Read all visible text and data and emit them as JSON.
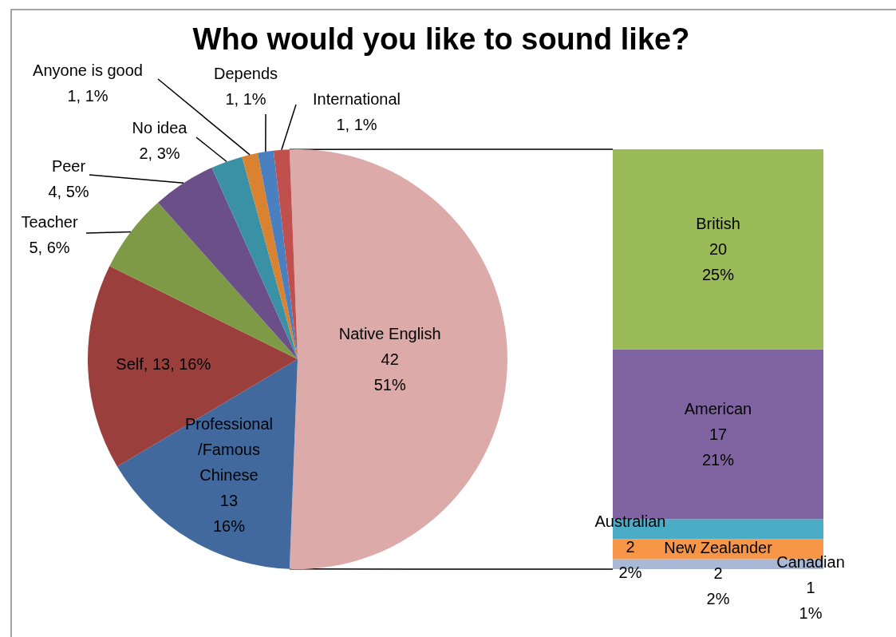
{
  "chart_data": [
    {
      "type": "pie",
      "title": "Who would you like to sound like?",
      "categories": [
        "Native English",
        "Professional\n/Famous\nChinese",
        "Self",
        "Teacher",
        "Peer",
        "No idea",
        "Anyone is good",
        "Depends",
        "International"
      ],
      "values": [
        42,
        13,
        13,
        5,
        4,
        2,
        1,
        1,
        1
      ],
      "value_labels": [
        "42\n51%",
        "13\n16%",
        "13, 16%",
        "5, 6%",
        "4, 5%",
        "2, 3%",
        "1, 1%",
        "1, 1%",
        "1, 1%"
      ],
      "colors": [
        "#dbaaa9",
        "#41699e",
        "#9b3f3d",
        "#7f9a46",
        "#6a4f88",
        "#3a91a6",
        "#d9822f",
        "#4a80c0",
        "#c0504d"
      ]
    },
    {
      "type": "bar",
      "stacked": true,
      "categories": [
        null
      ],
      "series": [
        {
          "name": "Canadian",
          "color": "#a9b8d6",
          "values": [
            1
          ],
          "value_labels": [
            "1\n1%"
          ]
        },
        {
          "name": "New Zealander",
          "color": "#f79646",
          "values": [
            2
          ],
          "value_labels": [
            "2\n2%"
          ]
        },
        {
          "name": "Australian",
          "color": "#4bacc6",
          "values": [
            2
          ],
          "value_labels": [
            "2\n2%"
          ]
        },
        {
          "name": "American",
          "color": "#8064a2",
          "values": [
            17
          ],
          "value_labels": [
            "17\n21%"
          ]
        },
        {
          "name": "British",
          "color": "#9bbb59",
          "values": [
            20
          ],
          "value_labels": [
            "20\n25%"
          ]
        }
      ]
    }
  ]
}
